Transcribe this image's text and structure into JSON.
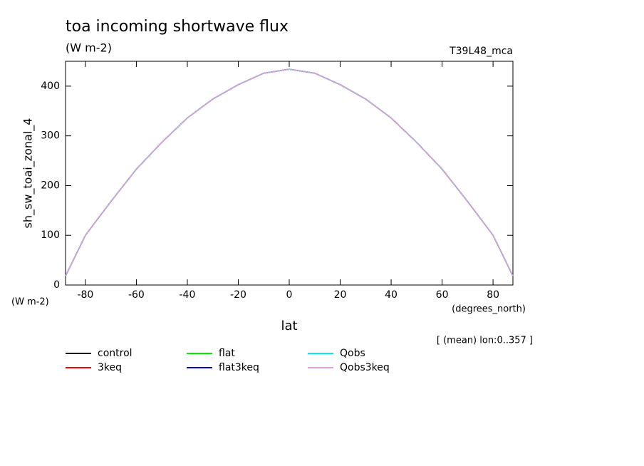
{
  "chart_data": {
    "type": "line",
    "title": "toa incoming shortwave flux",
    "units": "(W m-2)",
    "run_label": "T39L48_mca",
    "y_label": "sh_sw_toai_zonal_4",
    "y_units": "(W m-2)",
    "x_units": "(degrees_north)",
    "x_label": "lat",
    "note": "[ (mean) lon:0..357 ]",
    "x": [
      -87.8,
      -80,
      -70,
      -60,
      -50,
      -40,
      -30,
      -20,
      -10,
      0,
      10,
      20,
      30,
      40,
      50,
      60,
      70,
      80,
      87.8
    ],
    "series": [
      {
        "name": "control",
        "color": "#000000",
        "values": [
          18,
          100,
          168,
          233,
          287,
          336,
          374,
          403,
          426,
          434,
          426,
          403,
          374,
          336,
          287,
          233,
          168,
          100,
          18
        ]
      },
      {
        "name": "3keq",
        "color": "#ff0000",
        "values": [
          18,
          100,
          168,
          233,
          287,
          336,
          374,
          403,
          426,
          434,
          426,
          403,
          374,
          336,
          287,
          233,
          168,
          100,
          18
        ]
      },
      {
        "name": "flat",
        "color": "#00ee00",
        "values": [
          18,
          100,
          168,
          233,
          287,
          336,
          374,
          403,
          426,
          434,
          426,
          403,
          374,
          336,
          287,
          233,
          168,
          100,
          18
        ]
      },
      {
        "name": "flat3keq",
        "color": "#0000cc",
        "values": [
          18,
          100,
          168,
          233,
          287,
          336,
          374,
          403,
          426,
          434,
          426,
          403,
          374,
          336,
          287,
          233,
          168,
          100,
          18
        ]
      },
      {
        "name": "Qobs",
        "color": "#00eeee",
        "values": [
          18,
          100,
          168,
          233,
          287,
          336,
          374,
          403,
          426,
          434,
          426,
          403,
          374,
          336,
          287,
          233,
          168,
          100,
          18
        ]
      },
      {
        "name": "Qobs3keq",
        "color": "#dda0dd",
        "values": [
          18,
          100,
          168,
          233,
          287,
          336,
          374,
          403,
          426,
          434,
          426,
          403,
          374,
          336,
          287,
          233,
          168,
          100,
          18
        ]
      }
    ],
    "xlim": [
      -87.8,
      87.8
    ],
    "xticks": [
      -80,
      -60,
      -40,
      -20,
      0,
      20,
      40,
      60,
      80
    ],
    "ylim": [
      0,
      450
    ],
    "yticks": [
      0,
      100,
      200,
      300,
      400
    ]
  }
}
